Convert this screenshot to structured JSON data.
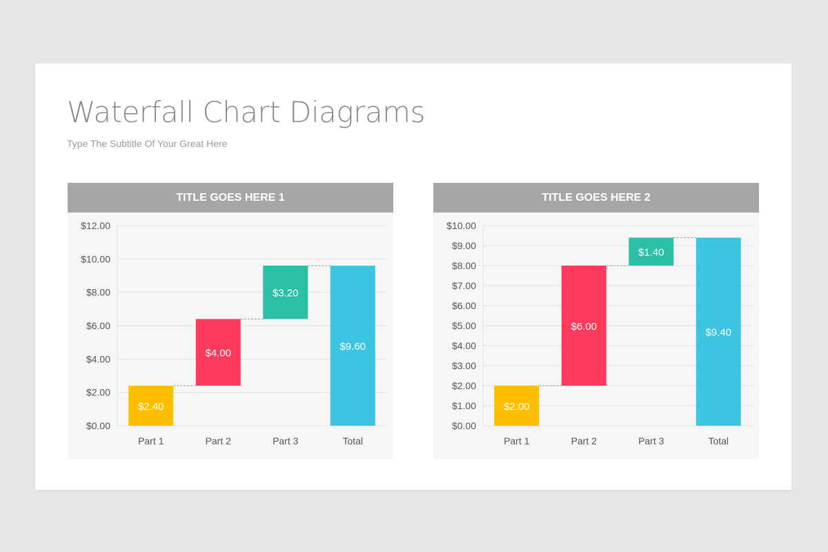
{
  "title": "Waterfall Chart Diagrams",
  "subtitle": "Type The Subtitle Of Your Great Here",
  "chart_data": [
    {
      "type": "bar",
      "subtype": "waterfall",
      "title": "TITLE GOES HERE 1",
      "categories": [
        "Part 1",
        "Part 2",
        "Part 3",
        "Total"
      ],
      "values": [
        2.4,
        4.0,
        3.2,
        9.6
      ],
      "value_labels": [
        "$2.40",
        "$4.00",
        "$3.20",
        "$9.60"
      ],
      "ylim": [
        0,
        12
      ],
      "yticks": [
        "$0.00",
        "$2.00",
        "$4.00",
        "$6.00",
        "$8.00",
        "$10.00",
        "$12.00"
      ],
      "grid": true,
      "legend": "none",
      "colors": [
        "#fdbf00",
        "#fe3b5c",
        "#2bbfa6",
        "#3bc5e0"
      ]
    },
    {
      "type": "bar",
      "subtype": "waterfall",
      "title": "TITLE GOES HERE 2",
      "categories": [
        "Part 1",
        "Part 2",
        "Part 3",
        "Total"
      ],
      "values": [
        2.0,
        6.0,
        1.4,
        9.4
      ],
      "value_labels": [
        "$2.00",
        "$6.00",
        "$1.40",
        "$9.40"
      ],
      "ylim": [
        0,
        10
      ],
      "yticks": [
        "$0.00",
        "$1.00",
        "$2.00",
        "$3.00",
        "$4.00",
        "$5.00",
        "$6.00",
        "$7.00",
        "$8.00",
        "$9.00",
        "$10.00"
      ],
      "grid": true,
      "legend": "none",
      "colors": [
        "#fdbf00",
        "#fe3b5c",
        "#2bbfa6",
        "#3bc5e0"
      ]
    }
  ]
}
